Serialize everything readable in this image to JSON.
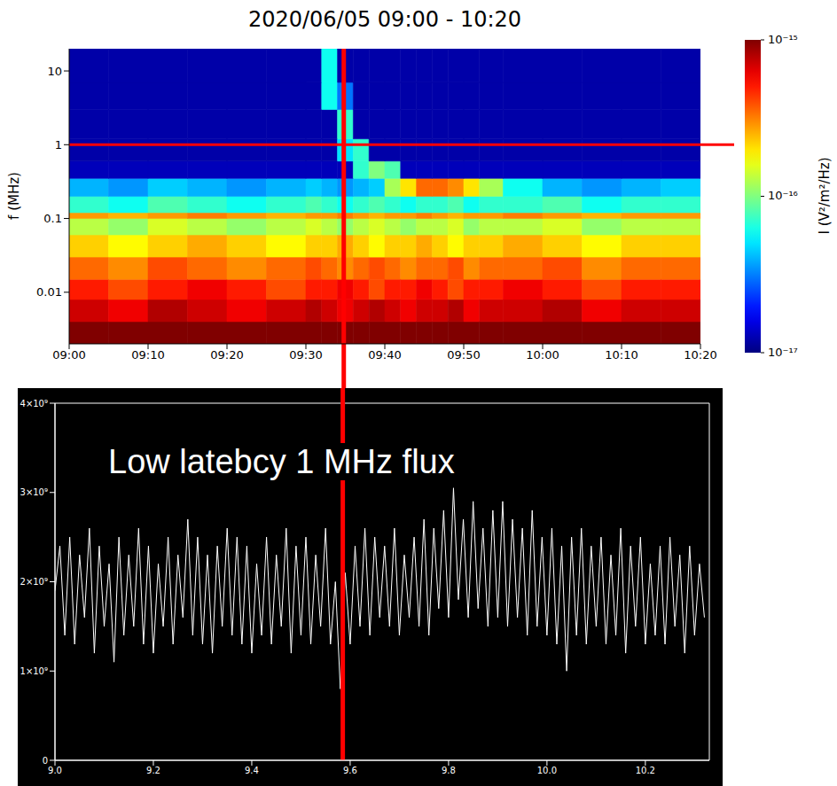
{
  "chart_data": [
    {
      "type": "heatmap",
      "title": "2020/06/05 09:00 - 10:20",
      "y_label": "f (MHz)",
      "log": "y",
      "x_edges": [
        540,
        545,
        550,
        555,
        560,
        565,
        570,
        572,
        574,
        576,
        578,
        580,
        582,
        584,
        586,
        588,
        590,
        592,
        595,
        600,
        605,
        610,
        615,
        620
      ],
      "y_edges": [
        0.002,
        0.004,
        0.008,
        0.015,
        0.03,
        0.06,
        0.1,
        0.12,
        0.2,
        0.35,
        0.6,
        1.2,
        3,
        7,
        20
      ],
      "cells": [
        [
          1e-15,
          1e-15,
          1e-15,
          1e-15,
          1e-15,
          1e-15,
          1e-15,
          1e-15,
          1e-15,
          1e-15,
          1e-15,
          1e-15,
          1e-15,
          1e-15,
          1e-15,
          1e-15,
          1e-15,
          1e-15,
          1e-15,
          1e-15,
          1e-15,
          1e-15,
          1e-15
        ],
        [
          7e-16,
          6e-16,
          8e-16,
          7e-16,
          6e-16,
          7e-16,
          8e-16,
          7e-16,
          6e-16,
          7e-16,
          8e-16,
          7e-16,
          6e-16,
          7e-16,
          7e-16,
          8e-16,
          6e-16,
          7e-16,
          7e-16,
          8e-16,
          6e-16,
          7e-16,
          7e-16
        ],
        [
          5e-16,
          4e-16,
          5e-16,
          6e-16,
          5e-16,
          4e-16,
          5e-16,
          5e-16,
          6e-16,
          5e-16,
          4e-16,
          5e-16,
          5e-16,
          6e-16,
          5e-16,
          4e-16,
          5e-16,
          5e-16,
          6e-16,
          5e-16,
          4e-16,
          5e-16,
          5e-16
        ],
        [
          3.5e-16,
          3e-16,
          4e-16,
          3.5e-16,
          3e-16,
          3.5e-16,
          4e-16,
          3.5e-16,
          3e-16,
          3.5e-16,
          4e-16,
          3.5e-16,
          3e-16,
          3.5e-16,
          3.5e-16,
          4e-16,
          3e-16,
          3.5e-16,
          3.5e-16,
          4e-16,
          3e-16,
          3.5e-16,
          3.5e-16
        ],
        [
          2.2e-16,
          1.8e-16,
          2.2e-16,
          2.6e-16,
          2.2e-16,
          1.8e-16,
          2.2e-16,
          2.2e-16,
          2.6e-16,
          2.2e-16,
          1.8e-16,
          2.2e-16,
          2.2e-16,
          2.6e-16,
          2.2e-16,
          1.8e-16,
          2.2e-16,
          2.2e-16,
          2.6e-16,
          2.2e-16,
          1.8e-16,
          2.2e-16,
          2.2e-16
        ],
        [
          1.3e-16,
          1.1e-16,
          1.5e-16,
          1.3e-16,
          1.1e-16,
          1.3e-16,
          1.5e-16,
          1.3e-16,
          1.1e-16,
          1.3e-16,
          1.5e-16,
          1.3e-16,
          1.1e-16,
          1.3e-16,
          1.3e-16,
          1.5e-16,
          1.1e-16,
          1.3e-16,
          1.3e-16,
          1.5e-16,
          1.1e-16,
          1.3e-16,
          1.3e-16
        ],
        [
          2.8e-16,
          2.5e-16,
          2.8e-16,
          3.2e-16,
          2.8e-16,
          2.5e-16,
          2.8e-16,
          2.8e-16,
          3.2e-16,
          2.8e-16,
          2.5e-16,
          2.8e-16,
          2.8e-16,
          3.2e-16,
          2.8e-16,
          2.5e-16,
          2.8e-16,
          2.8e-16,
          3.2e-16,
          2.8e-16,
          2.5e-16,
          2.8e-16,
          2.8e-16
        ],
        [
          7e-17,
          6e-17,
          8e-17,
          7e-17,
          6e-17,
          7e-17,
          8e-17,
          7e-17,
          6e-17,
          7e-17,
          8e-17,
          7e-17,
          6e-17,
          7e-17,
          7e-17,
          8e-17,
          6e-17,
          7e-17,
          7e-17,
          8e-17,
          6e-17,
          7e-17,
          7e-17
        ],
        [
          4e-17,
          3.5e-17,
          4.5e-17,
          4e-17,
          3.5e-17,
          4e-17,
          4.5e-17,
          4e-17,
          3.5e-17,
          4e-17,
          4.5e-17,
          1.2e-16,
          2e-16,
          3.5e-16,
          3.5e-16,
          3e-16,
          2e-16,
          1.2e-16,
          6e-17,
          4e-17,
          3.5e-17,
          4e-17,
          4.5e-17
        ],
        [
          1.3e-17,
          1.3e-17,
          1.3e-17,
          1.3e-17,
          1.3e-17,
          1.3e-17,
          1.3e-17,
          1.3e-17,
          1.3e-17,
          7e-17,
          1e-16,
          8e-17,
          1.3e-17,
          1.3e-17,
          1.3e-17,
          1.3e-17,
          1.3e-17,
          1.3e-17,
          1.3e-17,
          1.3e-17,
          1.3e-17,
          1.3e-17,
          1.3e-17
        ],
        [
          1.2e-17,
          1.2e-17,
          1.2e-17,
          1.2e-17,
          1.2e-17,
          1.2e-17,
          1.2e-17,
          1.2e-17,
          5e-17,
          7e-17,
          1.2e-17,
          1.2e-17,
          1.2e-17,
          1.2e-17,
          1.2e-17,
          1.2e-17,
          1.2e-17,
          1.2e-17,
          1.2e-17,
          1.2e-17,
          1.2e-17,
          1.2e-17,
          1.2e-17
        ],
        [
          1.2e-17,
          1.2e-17,
          1.2e-17,
          1.2e-17,
          1.2e-17,
          1.2e-17,
          1.2e-17,
          1.2e-17,
          7e-17,
          1.2e-17,
          1.2e-17,
          1.2e-17,
          1.2e-17,
          1.2e-17,
          1.2e-17,
          1.2e-17,
          1.2e-17,
          1.2e-17,
          1.2e-17,
          1.2e-17,
          1.2e-17,
          1.2e-17,
          1.2e-17
        ],
        [
          1.2e-17,
          1.2e-17,
          1.2e-17,
          1.2e-17,
          1.2e-17,
          1.2e-17,
          1.2e-17,
          6e-17,
          3e-17,
          1.2e-17,
          1.2e-17,
          1.2e-17,
          1.2e-17,
          1.2e-17,
          1.2e-17,
          1.2e-17,
          1.2e-17,
          1.2e-17,
          1.2e-17,
          1.2e-17,
          1.2e-17,
          1.2e-17,
          1.2e-17
        ],
        [
          1.2e-17,
          1.2e-17,
          1.2e-17,
          1.2e-17,
          1.2e-17,
          1.2e-17,
          1.2e-17,
          6e-17,
          1.2e-17,
          1.2e-17,
          1.2e-17,
          1.2e-17,
          1.2e-17,
          1.2e-17,
          1.2e-17,
          1.2e-17,
          1.2e-17,
          1.2e-17,
          1.2e-17,
          1.2e-17,
          1.2e-17,
          1.2e-17,
          1.2e-17
        ]
      ],
      "xlim": [
        540,
        620
      ],
      "ylim": [
        0.002,
        20
      ],
      "xticks": [
        {
          "value": 540,
          "label": "09:00"
        },
        {
          "value": 550,
          "label": "09:10"
        },
        {
          "value": 560,
          "label": "09:20"
        },
        {
          "value": 570,
          "label": "09:30"
        },
        {
          "value": 580,
          "label": "09:40"
        },
        {
          "value": 590,
          "label": "09:50"
        },
        {
          "value": 600,
          "label": "10:00"
        },
        {
          "value": 610,
          "label": "10:10"
        },
        {
          "value": 620,
          "label": "10:20"
        }
      ],
      "yticks": [
        0.01,
        0.1,
        1,
        10
      ],
      "colorbar": {
        "label": "I (V²/m²/Hz)",
        "range": [
          1e-17,
          1e-15
        ],
        "ticks": [
          {
            "value": 1e-15,
            "label": "10⁻¹⁵"
          },
          {
            "value": 1e-16,
            "label": "10⁻¹⁶"
          },
          {
            "value": 1e-17,
            "label": "10⁻¹⁷"
          }
        ]
      },
      "reference_lines": [
        {
          "x": 574.8,
          "color": "#ff0000"
        },
        {
          "y": 1,
          "color": "#ff0000"
        }
      ]
    },
    {
      "type": "line",
      "annotations": [
        "Low latebcy 1 MHz flux"
      ],
      "color": "#ffffff",
      "x": [
        9,
        9.01,
        9.02,
        9.03,
        9.04,
        9.05,
        9.06,
        9.07,
        9.08,
        9.09,
        9.1,
        9.11,
        9.12,
        9.13,
        9.14,
        9.15,
        9.16,
        9.17,
        9.18,
        9.19,
        9.2,
        9.21,
        9.22,
        9.23,
        9.24,
        9.25,
        9.26,
        9.27,
        9.28,
        9.29,
        9.3,
        9.31,
        9.32,
        9.33,
        9.34,
        9.35,
        9.36,
        9.37,
        9.38,
        9.39,
        9.4,
        9.41,
        9.42,
        9.43,
        9.44,
        9.45,
        9.46,
        9.47,
        9.48,
        9.49,
        9.5,
        9.51,
        9.52,
        9.53,
        9.54,
        9.55,
        9.56,
        9.57,
        9.58,
        9.59,
        9.6,
        9.61,
        9.62,
        9.63,
        9.64,
        9.65,
        9.66,
        9.67,
        9.68,
        9.69,
        9.7,
        9.71,
        9.72,
        9.73,
        9.74,
        9.75,
        9.76,
        9.77,
        9.78,
        9.79,
        9.8,
        9.81,
        9.82,
        9.83,
        9.84,
        9.85,
        9.86,
        9.87,
        9.88,
        9.89,
        9.9,
        9.91,
        9.92,
        9.93,
        9.94,
        9.95,
        9.96,
        9.97,
        9.98,
        9.99,
        10,
        10.01,
        10.02,
        10.03,
        10.04,
        10.05,
        10.06,
        10.07,
        10.08,
        10.09,
        10.1,
        10.11,
        10.12,
        10.13,
        10.14,
        10.15,
        10.16,
        10.17,
        10.18,
        10.19,
        10.2,
        10.21,
        10.22,
        10.23,
        10.24,
        10.25,
        10.26,
        10.27,
        10.28,
        10.29,
        10.3,
        10.31,
        10.32
      ],
      "values": [
        1900000000.0,
        2400000000.0,
        1400000000.0,
        2500000000.0,
        1300000000.0,
        2300000000.0,
        1600000000.0,
        2600000000.0,
        1200000000.0,
        2400000000.0,
        1500000000.0,
        2200000000.0,
        1100000000.0,
        2500000000.0,
        1400000000.0,
        2300000000.0,
        1500000000.0,
        2600000000.0,
        1300000000.0,
        2400000000.0,
        1200000000.0,
        2200000000.0,
        1500000000.0,
        2500000000.0,
        1300000000.0,
        2300000000.0,
        1600000000.0,
        2700000000.0,
        1400000000.0,
        2500000000.0,
        1300000000.0,
        2300000000.0,
        1200000000.0,
        2400000000.0,
        1500000000.0,
        2600000000.0,
        1400000000.0,
        2500000000.0,
        1300000000.0,
        2400000000.0,
        1200000000.0,
        2200000000.0,
        1400000000.0,
        2500000000.0,
        1300000000.0,
        2300000000.0,
        1500000000.0,
        2600000000.0,
        1200000000.0,
        2400000000.0,
        1400000000.0,
        2500000000.0,
        1300000000.0,
        2300000000.0,
        1500000000.0,
        2600000000.0,
        1300000000.0,
        2000000000.0,
        800000000.0,
        2100000000.0,
        1300000000.0,
        2400000000.0,
        1500000000.0,
        2600000000.0,
        1400000000.0,
        2500000000.0,
        1600000000.0,
        2400000000.0,
        1500000000.0,
        2600000000.0,
        1400000000.0,
        2300000000.0,
        1600000000.0,
        2500000000.0,
        1500000000.0,
        2700000000.0,
        1400000000.0,
        2600000000.0,
        1700000000.0,
        2800000000.0,
        1600000000.0,
        3050000000.0,
        1800000000.0,
        2700000000.0,
        1600000000.0,
        2900000000.0,
        1700000000.0,
        2600000000.0,
        1500000000.0,
        2800000000.0,
        1600000000.0,
        2900000000.0,
        1500000000.0,
        2700000000.0,
        1600000000.0,
        2600000000.0,
        1400000000.0,
        2800000000.0,
        1500000000.0,
        2500000000.0,
        1400000000.0,
        2600000000.0,
        1300000000.0,
        2400000000.0,
        1000000000.0,
        2500000000.0,
        1400000000.0,
        2600000000.0,
        1300000000.0,
        2400000000.0,
        1500000000.0,
        2500000000.0,
        1300000000.0,
        2300000000.0,
        1400000000.0,
        2600000000.0,
        1200000000.0,
        2400000000.0,
        1500000000.0,
        2500000000.0,
        1300000000.0,
        2200000000.0,
        1400000000.0,
        2400000000.0,
        1300000000.0,
        2500000000.0,
        1500000000.0,
        2300000000.0,
        1200000000.0,
        2400000000.0,
        1400000000.0,
        2200000000.0,
        1600000000.0
      ],
      "xlim": [
        9,
        10.33
      ],
      "ylim": [
        0,
        4000000000.0
      ],
      "xticks": [
        {
          "value": 9,
          "label": "9.0"
        },
        9.2,
        9.4,
        9.6,
        9.8,
        {
          "value": 10,
          "label": "10.0"
        },
        10.2
      ],
      "yticks": [
        0,
        {
          "value": 1000000000.0,
          "label": "1×10⁹"
        },
        {
          "value": 2000000000.0,
          "label": "2×10⁹"
        },
        {
          "value": 3000000000.0,
          "label": "3×10⁹"
        },
        {
          "value": 4000000000.0,
          "label": "4×10⁹"
        }
      ],
      "reference_lines": [
        {
          "x": 9.585,
          "color": "#ff0000"
        }
      ]
    }
  ]
}
